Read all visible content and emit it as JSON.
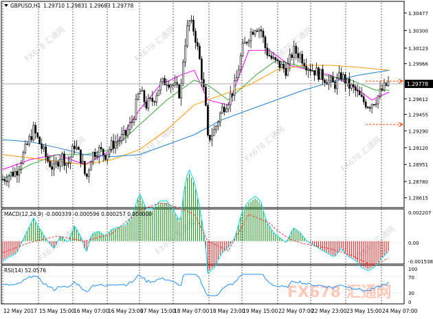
{
  "header": {
    "symbol_label": "GBPUSD,H1",
    "ohlc_text": "1.29710 1.29831 1.29683 1.29778"
  },
  "macd": {
    "label": "MACD(12,26,9) -0.000339 -0.000596 0.000257 0.000000",
    "scale": [
      "0.002207",
      "0.00",
      "-0.001538"
    ]
  },
  "rsi": {
    "label": "RSI(14) 52.0576",
    "scale": [
      "100",
      "70",
      "30",
      "0"
    ]
  },
  "price_scale": [
    "1.30477",
    "1.30300",
    "1.30123",
    "1.29966",
    "1.29778",
    "1.29612",
    "1.29455",
    "1.29290",
    "1.29120",
    "1.28951",
    "1.28780",
    "1.28615"
  ],
  "current_price": "1.29778",
  "time_axis": [
    "12 May 2017",
    "15 May 15:00",
    "16 May 07:00",
    "16 May 23:00",
    "17 May 15:00",
    "18 May 07:00",
    "18 May 23:00",
    "19 May 15:00",
    "22 May 07:00",
    "22 May 23:00",
    "23 May 15:00",
    "24 May 07:00"
  ],
  "watermark": "FX678 汇通网",
  "colors": {
    "bull_candle": "#ffffff",
    "bear_candle": "#000000",
    "ma_fast": "#ff00ff",
    "ma_mid": "#2eaa2e",
    "ma_slow": "#ff9900",
    "ma_long": "#1e7fd8",
    "macd_pos": "#2e9b2e",
    "macd_neg": "#e03030",
    "macd_line": "#00d8e8",
    "signal_line": "#ff3030",
    "rsi_line": "#1e90ff",
    "current_price_tag": "#000000",
    "arrow_line": "#ff4500"
  },
  "chart_data": {
    "type": "candlestick",
    "symbol": "GBPUSD",
    "timeframe": "H1",
    "ylim": [
      1.2853,
      1.3058
    ],
    "grid": true,
    "x_tick_labels": [
      "12 May 2017",
      "15 May 15:00",
      "16 May 07:00",
      "16 May 23:00",
      "17 May 15:00",
      "18 May 07:00",
      "18 May 23:00",
      "19 May 15:00",
      "22 May 07:00",
      "22 May 23:00",
      "23 May 15:00",
      "24 May 07:00"
    ],
    "price_path": [
      [
        0,
        1.288
      ],
      [
        10,
        1.2885
      ],
      [
        20,
        1.2888
      ],
      [
        30,
        1.2905
      ],
      [
        45,
        1.293
      ],
      [
        55,
        1.2915
      ],
      [
        65,
        1.29
      ],
      [
        75,
        1.289
      ],
      [
        85,
        1.2905
      ],
      [
        95,
        1.2895
      ],
      [
        105,
        1.2915
      ],
      [
        115,
        1.29
      ],
      [
        122,
        1.288
      ],
      [
        130,
        1.2905
      ],
      [
        140,
        1.291
      ],
      [
        150,
        1.2905
      ],
      [
        160,
        1.2915
      ],
      [
        170,
        1.292
      ],
      [
        180,
        1.2925
      ],
      [
        190,
        1.294
      ],
      [
        200,
        1.297
      ],
      [
        210,
        1.2955
      ],
      [
        220,
        1.296
      ],
      [
        230,
        1.2975
      ],
      [
        240,
        1.298
      ],
      [
        250,
        1.2975
      ],
      [
        260,
        1.2965
      ],
      [
        265,
        1.301
      ],
      [
        272,
        1.304
      ],
      [
        280,
        1.303
      ],
      [
        288,
        1.3
      ],
      [
        296,
        1.296
      ],
      [
        300,
        1.292
      ],
      [
        310,
        1.293
      ],
      [
        320,
        1.295
      ],
      [
        330,
        1.296
      ],
      [
        340,
        1.2975
      ],
      [
        350,
        1.301
      ],
      [
        360,
        1.3025
      ],
      [
        370,
        1.3035
      ],
      [
        378,
        1.303
      ],
      [
        385,
        1.301
      ],
      [
        395,
        1.3
      ],
      [
        405,
        1.2995
      ],
      [
        415,
        1.299
      ],
      [
        425,
        1.301
      ],
      [
        435,
        1.3005
      ],
      [
        445,
        1.2995
      ],
      [
        455,
        1.299
      ],
      [
        465,
        1.2985
      ],
      [
        475,
        1.298
      ],
      [
        485,
        1.2975
      ],
      [
        495,
        1.2985
      ],
      [
        505,
        1.2975
      ],
      [
        515,
        1.297
      ],
      [
        525,
        1.296
      ],
      [
        535,
        1.2955
      ],
      [
        545,
        1.296
      ],
      [
        555,
        1.297
      ],
      [
        565,
        1.2978
      ]
    ],
    "series": [
      {
        "values": [
          [
            0,
            1.289
          ],
          [
            40,
            1.29
          ],
          [
            80,
            1.2905
          ],
          [
            120,
            1.2895
          ],
          [
            160,
            1.291
          ],
          [
            200,
            1.295
          ],
          [
            230,
            1.2975
          ],
          [
            260,
            1.2985
          ],
          [
            280,
            1.299
          ],
          [
            300,
            1.296
          ],
          [
            330,
            1.2955
          ],
          [
            360,
            1.301
          ],
          [
            390,
            1.301
          ],
          [
            420,
            1.2995
          ],
          [
            450,
            1.299
          ],
          [
            480,
            1.2985
          ],
          [
            510,
            1.2975
          ],
          [
            540,
            1.296
          ],
          [
            565,
            1.2968
          ]
        ]
      },
      {
        "values": [
          [
            0,
            1.288
          ],
          [
            40,
            1.2895
          ],
          [
            80,
            1.2905
          ],
          [
            120,
            1.2905
          ],
          [
            160,
            1.291
          ],
          [
            200,
            1.2935
          ],
          [
            240,
            1.296
          ],
          [
            280,
            1.298
          ],
          [
            300,
            1.2975
          ],
          [
            330,
            1.296
          ],
          [
            370,
            1.2985
          ],
          [
            400,
            1.3
          ],
          [
            430,
            1.2995
          ],
          [
            470,
            1.2985
          ],
          [
            510,
            1.298
          ],
          [
            545,
            1.297
          ],
          [
            565,
            1.297
          ]
        ]
      },
      {
        "values": [
          [
            0,
            1.2905
          ],
          [
            60,
            1.29
          ],
          [
            120,
            1.2895
          ],
          [
            160,
            1.29
          ],
          [
            200,
            1.291
          ],
          [
            240,
            1.293
          ],
          [
            280,
            1.2955
          ],
          [
            320,
            1.2965
          ],
          [
            360,
            1.2975
          ],
          [
            400,
            1.299
          ],
          [
            440,
            1.2995
          ],
          [
            480,
            1.2995
          ],
          [
            520,
            1.2993
          ],
          [
            565,
            1.299
          ]
        ]
      },
      {
        "values": [
          [
            0,
            1.292
          ],
          [
            40,
            1.2918
          ],
          [
            80,
            1.2912
          ],
          [
            120,
            1.2905
          ],
          [
            160,
            1.2903
          ],
          [
            200,
            1.2905
          ],
          [
            240,
            1.2915
          ],
          [
            280,
            1.2925
          ],
          [
            320,
            1.294
          ],
          [
            360,
            1.295
          ],
          [
            400,
            1.296
          ],
          [
            440,
            1.297
          ],
          [
            480,
            1.2978
          ],
          [
            520,
            1.2985
          ],
          [
            565,
            1.299
          ]
        ]
      }
    ],
    "indicators": [
      {
        "name": "MACD(12,26,9)",
        "values_shown": [
          -0.000339,
          -0.000596,
          0.000257,
          0.0
        ],
        "ylim": [
          -0.001538,
          0.002207
        ]
      },
      {
        "name": "RSI(14)",
        "value_shown": 52.0576,
        "levels": [
          30,
          70
        ],
        "ylim": [
          0,
          100
        ]
      }
    ]
  }
}
